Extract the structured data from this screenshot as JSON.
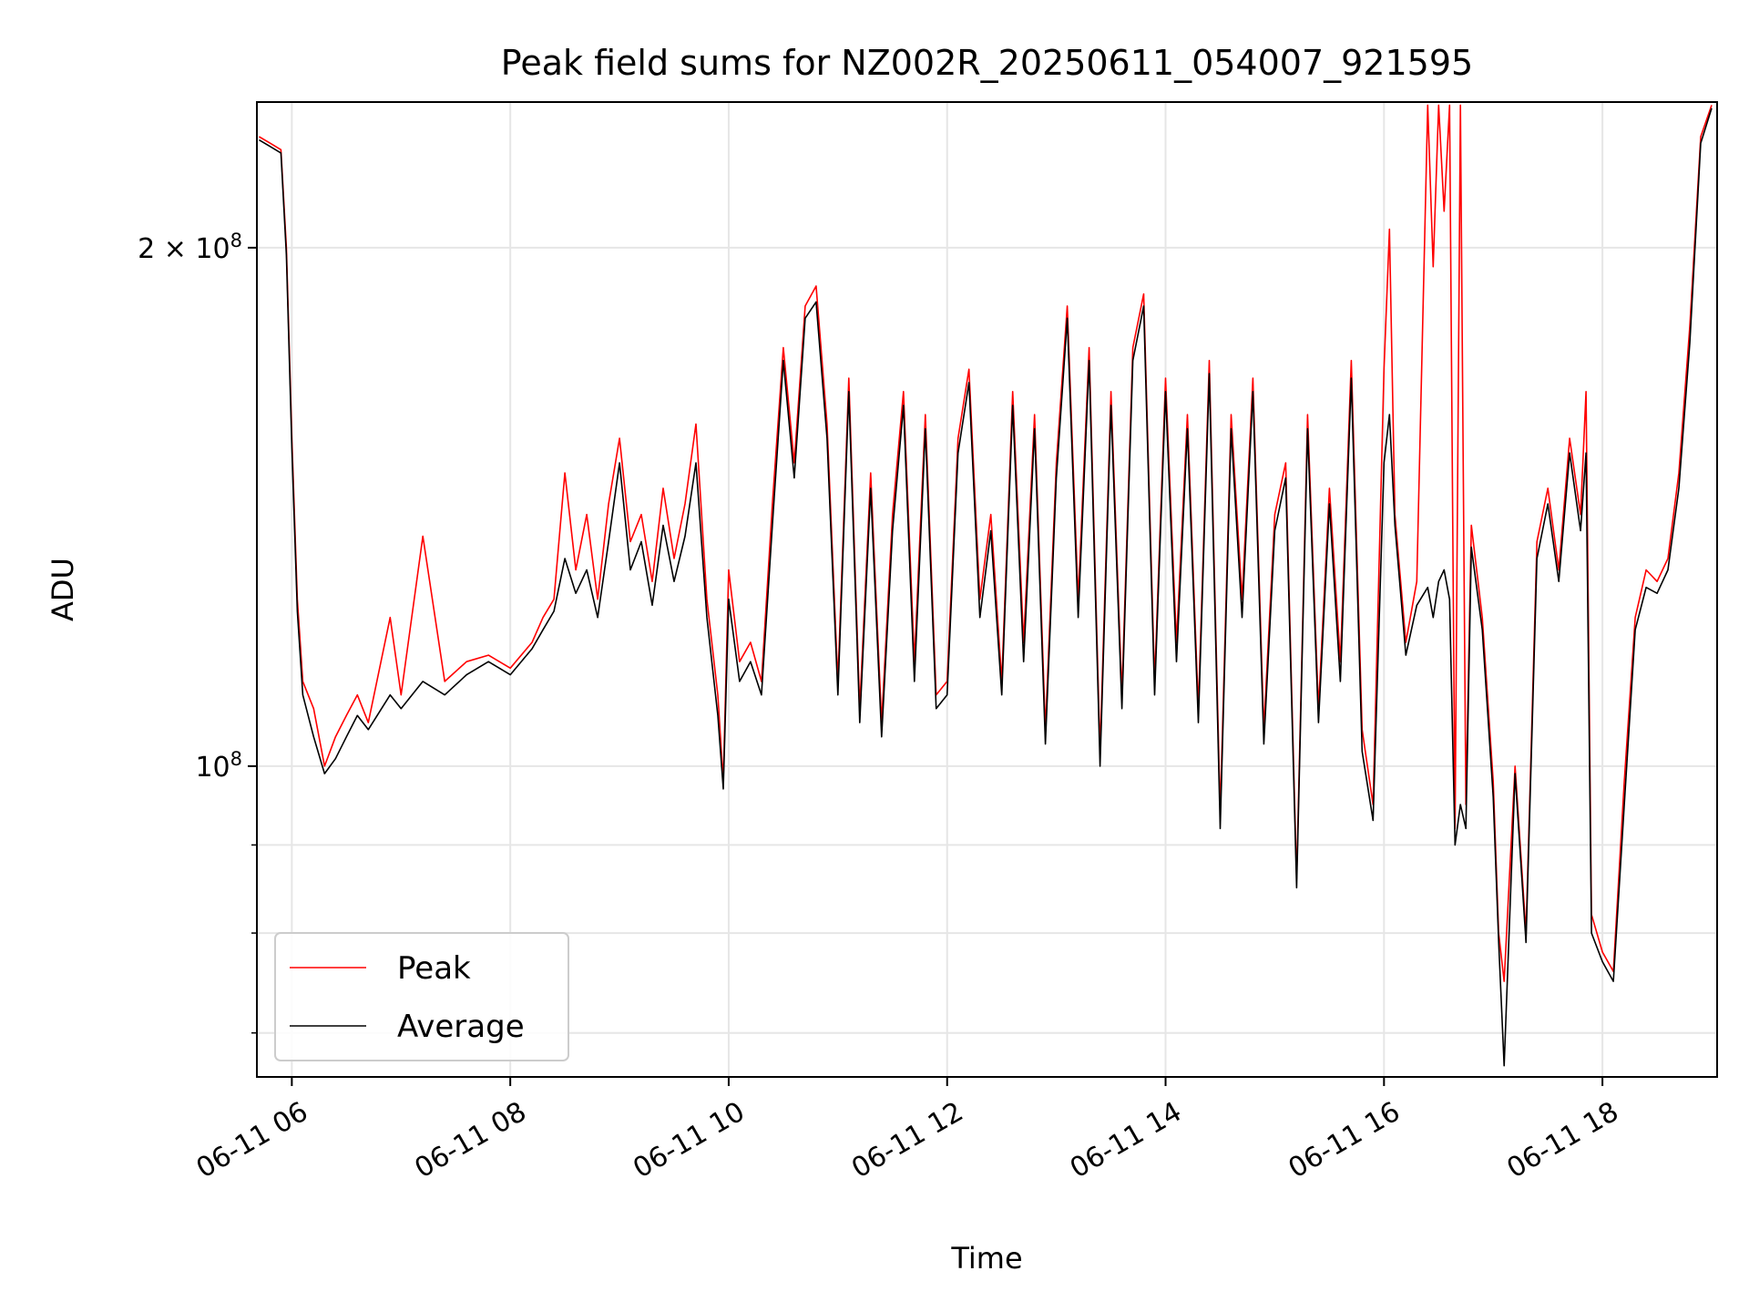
{
  "chart_data": {
    "type": "line",
    "title": "Peak field sums for NZ002R_20250611_054007_921595",
    "xlabel": "Time",
    "ylabel": "ADU",
    "x_ticks": [
      "06-11 06",
      "06-11 08",
      "06-11 10",
      "06-11 12",
      "06-11 14",
      "06-11 16",
      "06-11 18"
    ],
    "y_ticks": [
      {
        "value": 100000000,
        "label_base": "10",
        "label_exp": "8",
        "label_mult": ""
      },
      {
        "value": 200000000,
        "label_base": "10",
        "label_exp": "8",
        "label_mult": "2 × "
      }
    ],
    "y_scale": "log",
    "xlim_hours": [
      5.68,
      19.05
    ],
    "ylim": [
      66000000,
      243000000
    ],
    "grid": true,
    "legend": {
      "position": "lower-left",
      "entries": [
        "Peak",
        "Average"
      ]
    },
    "colors": {
      "peak": "#ff0000",
      "average": "#000000"
    },
    "series": [
      {
        "name": "Peak",
        "x_hours": [
          5.7,
          5.8,
          5.9,
          5.95,
          6.0,
          6.05,
          6.1,
          6.2,
          6.3,
          6.4,
          6.5,
          6.6,
          6.7,
          6.9,
          7.0,
          7.2,
          7.4,
          7.6,
          7.8,
          8.0,
          8.2,
          8.3,
          8.4,
          8.5,
          8.6,
          8.7,
          8.8,
          8.9,
          9.0,
          9.1,
          9.2,
          9.3,
          9.4,
          9.5,
          9.6,
          9.7,
          9.8,
          9.9,
          9.95,
          10.0,
          10.1,
          10.2,
          10.3,
          10.4,
          10.5,
          10.6,
          10.7,
          10.8,
          10.9,
          11.0,
          11.1,
          11.2,
          11.3,
          11.4,
          11.5,
          11.6,
          11.7,
          11.8,
          11.9,
          12.0,
          12.1,
          12.2,
          12.3,
          12.4,
          12.5,
          12.6,
          12.7,
          12.8,
          12.9,
          13.0,
          13.1,
          13.2,
          13.3,
          13.4,
          13.5,
          13.6,
          13.7,
          13.8,
          13.9,
          14.0,
          14.1,
          14.2,
          14.3,
          14.4,
          14.5,
          14.6,
          14.7,
          14.8,
          14.9,
          15.0,
          15.1,
          15.2,
          15.3,
          15.4,
          15.5,
          15.6,
          15.7,
          15.8,
          15.9,
          16.0,
          16.05,
          16.1,
          16.2,
          16.3,
          16.4,
          16.45,
          16.5,
          16.55,
          16.6,
          16.65,
          16.7,
          16.75,
          16.8,
          16.9,
          17.0,
          17.05,
          17.1,
          17.2,
          17.3,
          17.4,
          17.5,
          17.6,
          17.7,
          17.8,
          17.85,
          17.9,
          18.0,
          18.1,
          18.2,
          18.3,
          18.4,
          18.5,
          18.6,
          18.7,
          18.8,
          18.9,
          19.0
        ],
        "values": [
          232000000,
          230000000,
          228000000,
          200000000,
          155000000,
          125000000,
          112000000,
          108000000,
          100000000,
          104000000,
          107000000,
          110000000,
          106000000,
          122000000,
          110000000,
          136000000,
          112000000,
          115000000,
          116000000,
          114000000,
          118000000,
          122000000,
          125000000,
          148000000,
          130000000,
          140000000,
          125000000,
          142000000,
          155000000,
          135000000,
          140000000,
          128000000,
          145000000,
          132000000,
          142000000,
          158000000,
          125000000,
          110000000,
          98000000,
          130000000,
          115000000,
          118000000,
          112000000,
          142000000,
          175000000,
          150000000,
          185000000,
          190000000,
          158000000,
          112000000,
          168000000,
          108000000,
          148000000,
          106000000,
          140000000,
          165000000,
          115000000,
          160000000,
          110000000,
          112000000,
          155000000,
          170000000,
          125000000,
          140000000,
          112000000,
          165000000,
          118000000,
          160000000,
          105000000,
          150000000,
          185000000,
          125000000,
          175000000,
          102000000,
          165000000,
          110000000,
          175000000,
          188000000,
          112000000,
          168000000,
          118000000,
          160000000,
          108000000,
          172000000,
          94000000,
          160000000,
          125000000,
          168000000,
          105000000,
          140000000,
          150000000,
          86000000,
          160000000,
          108000000,
          145000000,
          115000000,
          172000000,
          105000000,
          95000000,
          170000000,
          205000000,
          140000000,
          118000000,
          128000000,
          242000000,
          195000000,
          242000000,
          210000000,
          242000000,
          92000000,
          242000000,
          95000000,
          138000000,
          122000000,
          98000000,
          80000000,
          75000000,
          100000000,
          80000000,
          135000000,
          145000000,
          130000000,
          155000000,
          140000000,
          165000000,
          82000000,
          78000000,
          76000000,
          98000000,
          122000000,
          130000000,
          128000000,
          132000000,
          148000000,
          180000000,
          232000000,
          242000000
        ]
      },
      {
        "name": "Average",
        "x_hours": [
          5.7,
          5.8,
          5.9,
          5.95,
          6.0,
          6.05,
          6.1,
          6.2,
          6.3,
          6.4,
          6.5,
          6.6,
          6.7,
          6.9,
          7.0,
          7.2,
          7.4,
          7.6,
          7.8,
          8.0,
          8.2,
          8.3,
          8.4,
          8.5,
          8.6,
          8.7,
          8.8,
          8.9,
          9.0,
          9.1,
          9.2,
          9.3,
          9.4,
          9.5,
          9.6,
          9.7,
          9.8,
          9.9,
          9.95,
          10.0,
          10.1,
          10.2,
          10.3,
          10.4,
          10.5,
          10.6,
          10.7,
          10.8,
          10.9,
          11.0,
          11.1,
          11.2,
          11.3,
          11.4,
          11.5,
          11.6,
          11.7,
          11.8,
          11.9,
          12.0,
          12.1,
          12.2,
          12.3,
          12.4,
          12.5,
          12.6,
          12.7,
          12.8,
          12.9,
          13.0,
          13.1,
          13.2,
          13.3,
          13.4,
          13.5,
          13.6,
          13.7,
          13.8,
          13.9,
          14.0,
          14.1,
          14.2,
          14.3,
          14.4,
          14.5,
          14.6,
          14.7,
          14.8,
          14.9,
          15.0,
          15.1,
          15.2,
          15.3,
          15.4,
          15.5,
          15.6,
          15.7,
          15.8,
          15.9,
          16.0,
          16.05,
          16.1,
          16.2,
          16.3,
          16.4,
          16.45,
          16.5,
          16.55,
          16.6,
          16.65,
          16.7,
          16.75,
          16.8,
          16.9,
          17.0,
          17.05,
          17.1,
          17.2,
          17.3,
          17.4,
          17.5,
          17.6,
          17.7,
          17.8,
          17.85,
          17.9,
          18.0,
          18.1,
          18.2,
          18.3,
          18.4,
          18.5,
          18.6,
          18.7,
          18.8,
          18.9,
          19.0
        ],
        "values": [
          231000000,
          229000000,
          227000000,
          198000000,
          153000000,
          123000000,
          110000000,
          104000000,
          99000000,
          101000000,
          104000000,
          107000000,
          105000000,
          110000000,
          108000000,
          112000000,
          110000000,
          113000000,
          115000000,
          113000000,
          117000000,
          120000000,
          123000000,
          132000000,
          126000000,
          130000000,
          122000000,
          135000000,
          150000000,
          130000000,
          135000000,
          124000000,
          138000000,
          128000000,
          136000000,
          150000000,
          122000000,
          107000000,
          97000000,
          125000000,
          112000000,
          115000000,
          110000000,
          138000000,
          172000000,
          147000000,
          182000000,
          186000000,
          155000000,
          110000000,
          165000000,
          106000000,
          145000000,
          104000000,
          137000000,
          162000000,
          112000000,
          157000000,
          108000000,
          110000000,
          152000000,
          167000000,
          122000000,
          137000000,
          110000000,
          162000000,
          115000000,
          157000000,
          103000000,
          147000000,
          182000000,
          122000000,
          172000000,
          100000000,
          162000000,
          108000000,
          172000000,
          185000000,
          110000000,
          165000000,
          115000000,
          157000000,
          106000000,
          169000000,
          92000000,
          157000000,
          122000000,
          165000000,
          103000000,
          137000000,
          147000000,
          85000000,
          157000000,
          106000000,
          142000000,
          112000000,
          168000000,
          102000000,
          93000000,
          150000000,
          160000000,
          138000000,
          116000000,
          124000000,
          127000000,
          122000000,
          128000000,
          130000000,
          125000000,
          90000000,
          95000000,
          92000000,
          134000000,
          120000000,
          96000000,
          79000000,
          67000000,
          99000000,
          79000000,
          132000000,
          142000000,
          128000000,
          152000000,
          137000000,
          152000000,
          80000000,
          77000000,
          75000000,
          95000000,
          120000000,
          127000000,
          126000000,
          130000000,
          145000000,
          176000000,
          230000000,
          241000000
        ]
      }
    ]
  }
}
